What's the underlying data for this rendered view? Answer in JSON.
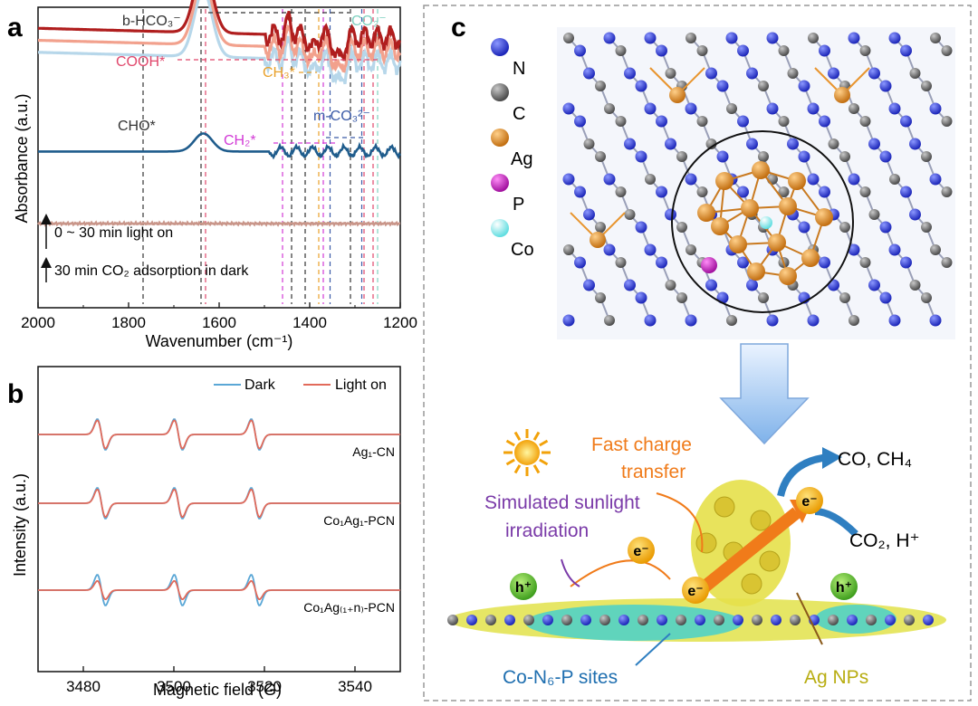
{
  "panels": {
    "a": {
      "label": "a",
      "chart_data": {
        "type": "line",
        "title": "",
        "xlabel": "Wavenumber (cm⁻¹)",
        "ylabel": "Absorbance (a.u.)",
        "xlim": [
          2000,
          1200
        ],
        "xticks": [
          2000,
          1800,
          1600,
          1400,
          1200
        ],
        "series_colors": [
          "#b01e1e",
          "#f2a18d",
          "#b7d7ea",
          "#1f5c8c",
          "#c9968a"
        ],
        "series": [
          {
            "name": "0 ~ 30 min light on (top)",
            "offset": 0.93,
            "peak": 0.44
          },
          {
            "name": "0 ~ 30 min light on (middle)",
            "offset": 0.89,
            "peak": 0.44
          },
          {
            "name": "0 ~ 30 min light on (bottom)",
            "offset": 0.85,
            "peak": 0.44
          },
          {
            "name": "30 min CO2 adsorption in dark",
            "offset": 0.52,
            "peak": 0.12
          },
          {
            "name": "baseline",
            "offset": 0.28,
            "peak": 0.0
          }
        ],
        "arrow_labels": [
          "0 ~ 30 min light on",
          "30 min CO₂ adsorption in dark"
        ],
        "assignments": [
          {
            "label": "b-HCO₃⁻",
            "color": "#333333",
            "wavenumbers": [
              1640,
              1440,
              1410,
              1310
            ]
          },
          {
            "label": "CO₂⁻",
            "color": "#7fd1c0",
            "wavenumbers": [
              1250
            ]
          },
          {
            "label": "COOH*",
            "color": "#e0466b",
            "wavenumbers": [
              1630,
              1280,
              1260
            ]
          },
          {
            "label": "CH₃*",
            "color": "#e8a02a",
            "wavenumbers": [
              1380
            ]
          },
          {
            "label": "m-CO₃²⁻",
            "color": "#3b5ba8",
            "wavenumbers": [
              1355,
              1285
            ]
          },
          {
            "label": "CH₂*",
            "color": "#d23ad6",
            "wavenumbers": [
              1460,
              1370
            ]
          },
          {
            "label": "CHO*",
            "color": "#333333",
            "wavenumbers": [
              1768
            ]
          }
        ]
      }
    },
    "b": {
      "label": "b",
      "chart_data": {
        "type": "line",
        "xlabel": "Magnetic field (G)",
        "ylabel": "Intensity (a.u.)",
        "xlim": [
          3470,
          3550
        ],
        "xticks": [
          3480,
          3500,
          3520,
          3540
        ],
        "legend": [
          "Dark",
          "Light on"
        ],
        "legend_colors": [
          "#5aa7d6",
          "#e26a5a"
        ],
        "line_positions_G": [
          3484,
          3501,
          3518
        ],
        "samples": [
          {
            "name": "Ag₁-CN",
            "dark_amp": 1.0,
            "light_amp": 0.92
          },
          {
            "name": "Co₁Ag₁-PCN",
            "dark_amp": 1.0,
            "light_amp": 0.9
          },
          {
            "name": "Co₁Ag₍₁₊n₎-PCN",
            "dark_amp": 1.0,
            "light_amp": 0.6
          }
        ]
      }
    },
    "c": {
      "label": "c",
      "legend": [
        {
          "label": "N",
          "color": "#2b3de0"
        },
        {
          "label": "C",
          "color": "#6f6f6f"
        },
        {
          "label": "Ag",
          "color": "#e8952e"
        },
        {
          "label": "P",
          "color": "#d12ad0"
        },
        {
          "label": "Co",
          "color": "#8ff0f2"
        }
      ],
      "labels": {
        "fast_charge_1": "Fast charge",
        "fast_charge_2": "transfer",
        "sun_1": "Simulated sunlight",
        "sun_2": "irradiation",
        "products": "CO, CH₄",
        "reactants": "CO₂, H⁺",
        "electron": "e⁻",
        "hole": "h⁺",
        "sites": "Co-N₆-P sites",
        "np": "Ag NPs"
      }
    }
  }
}
